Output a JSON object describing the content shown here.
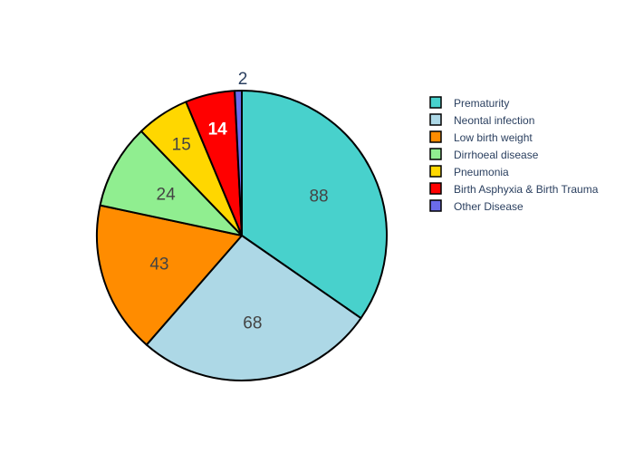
{
  "chart_data": {
    "type": "pie",
    "title": "",
    "labels": [
      "Prematurity",
      "Neontal infection",
      "Low birth weight",
      "Dirrhoeal disease",
      "Pneumonia",
      "Birth Asphyxia & Birth Trauma",
      "Other Disease"
    ],
    "values": [
      88,
      68,
      43,
      24,
      15,
      14,
      2
    ],
    "value_labels": [
      "88",
      "68",
      "43",
      "24",
      "15",
      "14",
      "2"
    ],
    "colors": [
      "#48D1CC",
      "#ADD8E6",
      "#FF8C00",
      "#90EE90",
      "#FFD700",
      "#FF0000",
      "#6B6BEA"
    ],
    "slice_outline_color": "#000000",
    "legend_position": "right",
    "start_angle_deg": 90,
    "direction": "clockwise",
    "sort": "descending"
  }
}
